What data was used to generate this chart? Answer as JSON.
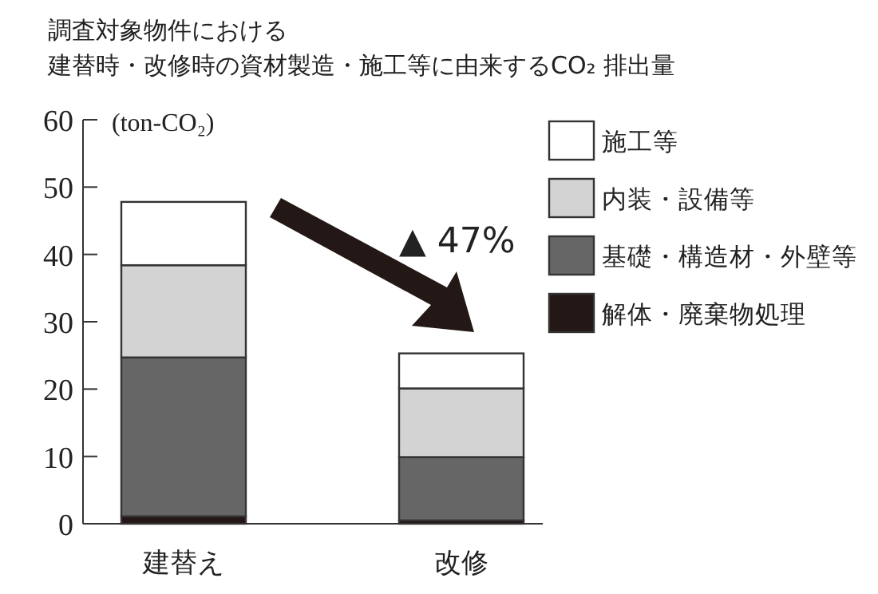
{
  "chart_data": {
    "type": "bar",
    "title": "調査対象物件における",
    "subtitle": "建替時・改修時の資材製造・施工等に由来するCO₂ 排出量",
    "ylabel": "(ton-CO₂)",
    "categories": [
      "建替え",
      "改修"
    ],
    "stacked": true,
    "series": [
      {
        "name": "解体・廃棄物処理",
        "color": "#231815",
        "values": [
          1.1,
          0.5
        ]
      },
      {
        "name": "基礎・構造材・外壁等",
        "color": "#666666",
        "values": [
          23.6,
          9.4
        ]
      },
      {
        "name": "内装・設備等",
        "color": "#d3d3d3",
        "values": [
          13.7,
          10.2
        ]
      },
      {
        "name": "施工等",
        "color": "#ffffff",
        "values": [
          9.4,
          5.2
        ]
      }
    ],
    "ylim": [
      0,
      60
    ],
    "yticks": [
      0,
      10,
      20,
      30,
      40,
      50,
      60
    ],
    "grid": false,
    "legend": "top right",
    "annotations": [
      "▲ 47%"
    ]
  }
}
